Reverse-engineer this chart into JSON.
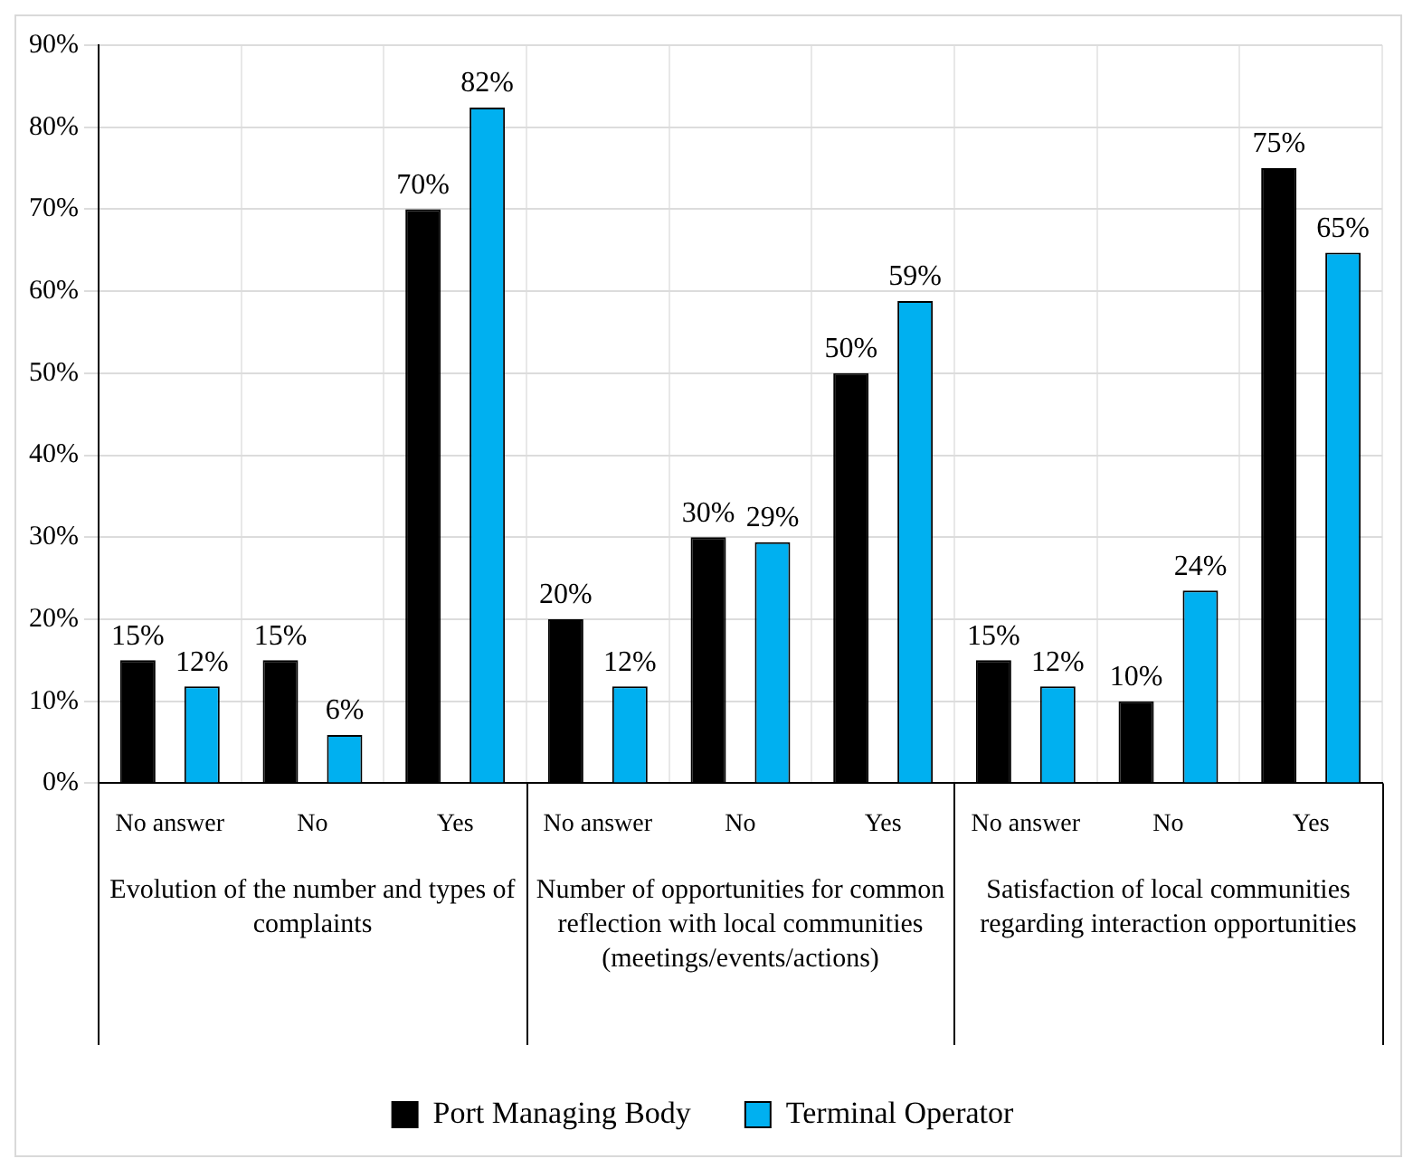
{
  "chart_data": {
    "type": "bar",
    "categories": [
      "No answer",
      "No",
      "Yes",
      "No answer",
      "No",
      "Yes",
      "No answer",
      "No",
      "Yes"
    ],
    "series": [
      {
        "name": "Port Managing Body",
        "color": "#000000",
        "values": [
          15,
          15,
          70,
          20,
          30,
          50,
          15,
          10,
          75
        ],
        "value_labels": [
          "15%",
          "15%",
          "70%",
          "20%",
          "30%",
          "50%",
          "15%",
          "10%",
          "75%"
        ]
      },
      {
        "name": "Terminal Operator",
        "color": "#00b0f0",
        "values": [
          11.8,
          5.9,
          82.4,
          11.8,
          29.4,
          58.8,
          11.8,
          23.5,
          64.7
        ],
        "value_labels": [
          "12%",
          "6%",
          "82%",
          "12%",
          "29%",
          "59%",
          "12%",
          "24%",
          "65%"
        ]
      }
    ],
    "ylim": [
      0,
      90
    ],
    "yticks": [
      {
        "value": 0,
        "label": "0%"
      },
      {
        "value": 10,
        "label": "10%"
      },
      {
        "value": 20,
        "label": "20%"
      },
      {
        "value": 30,
        "label": "30%"
      },
      {
        "value": 40,
        "label": "40%"
      },
      {
        "value": 50,
        "label": "50%"
      },
      {
        "value": 60,
        "label": "60%"
      },
      {
        "value": 70,
        "label": "70%"
      },
      {
        "value": 80,
        "label": "80%"
      },
      {
        "value": 90,
        "label": "90%"
      }
    ],
    "annotations": [
      "Evolution of the number and types of complaints",
      "Number of opportunities for common reflection with local communities (meetings/events/actions)",
      "Satisfaction of local communities regarding interaction opportunities"
    ],
    "grid": true,
    "legend": "bottom"
  }
}
